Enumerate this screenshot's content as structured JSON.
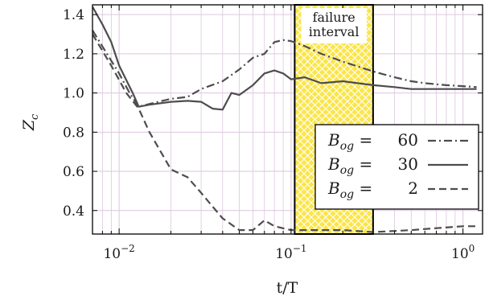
{
  "chart_data": {
    "type": "line",
    "xlabel": "t/T",
    "ylabel": "Z_c",
    "x_scale": "log",
    "xlim": [
      0.007,
      1.3
    ],
    "ylim": [
      0.28,
      1.45
    ],
    "x_ticks": [
      {
        "value": 0.01,
        "base": "10",
        "exp": "−2"
      },
      {
        "value": 0.1,
        "base": "10",
        "exp": "−1"
      },
      {
        "value": 1.0,
        "base": "10",
        "exp": "0"
      }
    ],
    "y_ticks": [
      "0.4",
      "0.6",
      "0.8",
      "1.0",
      "1.2",
      "1.4"
    ],
    "grid": true,
    "legend_position": "lower-right",
    "annotation": {
      "lines": [
        "failure",
        "interval"
      ],
      "x_range": [
        0.105,
        0.3
      ],
      "fill_color": "#f6dc1e"
    },
    "series": [
      {
        "name": "B_og = 60",
        "legend_label": "60",
        "style": "dashdot",
        "color": "#4d4d4d",
        "points": [
          [
            0.007,
            1.32
          ],
          [
            0.0085,
            1.2
          ],
          [
            0.01,
            1.1
          ],
          [
            0.0115,
            1.0
          ],
          [
            0.013,
            0.93
          ],
          [
            0.016,
            0.95
          ],
          [
            0.02,
            0.97
          ],
          [
            0.025,
            0.98
          ],
          [
            0.03,
            1.02
          ],
          [
            0.04,
            1.06
          ],
          [
            0.05,
            1.12
          ],
          [
            0.06,
            1.18
          ],
          [
            0.07,
            1.2
          ],
          [
            0.08,
            1.26
          ],
          [
            0.09,
            1.27
          ],
          [
            0.1,
            1.265
          ],
          [
            0.12,
            1.24
          ],
          [
            0.15,
            1.2
          ],
          [
            0.2,
            1.16
          ],
          [
            0.3,
            1.11
          ],
          [
            0.4,
            1.08
          ],
          [
            0.5,
            1.06
          ],
          [
            0.6,
            1.05
          ],
          [
            0.8,
            1.04
          ],
          [
            1.0,
            1.035
          ],
          [
            1.2,
            1.03
          ]
        ]
      },
      {
        "name": "B_og = 30",
        "legend_label": "30",
        "style": "solid",
        "color": "#4d4d4d",
        "points": [
          [
            0.007,
            1.44
          ],
          [
            0.008,
            1.35
          ],
          [
            0.009,
            1.26
          ],
          [
            0.01,
            1.14
          ],
          [
            0.012,
            1.0
          ],
          [
            0.013,
            0.93
          ],
          [
            0.015,
            0.94
          ],
          [
            0.02,
            0.955
          ],
          [
            0.025,
            0.96
          ],
          [
            0.03,
            0.955
          ],
          [
            0.035,
            0.92
          ],
          [
            0.04,
            0.915
          ],
          [
            0.045,
            1.0
          ],
          [
            0.05,
            0.99
          ],
          [
            0.06,
            1.04
          ],
          [
            0.07,
            1.1
          ],
          [
            0.08,
            1.115
          ],
          [
            0.09,
            1.1
          ],
          [
            0.1,
            1.07
          ],
          [
            0.12,
            1.08
          ],
          [
            0.15,
            1.05
          ],
          [
            0.2,
            1.06
          ],
          [
            0.3,
            1.04
          ],
          [
            0.4,
            1.03
          ],
          [
            0.5,
            1.02
          ],
          [
            0.7,
            1.02
          ],
          [
            1.0,
            1.02
          ],
          [
            1.2,
            1.02
          ]
        ]
      },
      {
        "name": "B_og = 2",
        "legend_label": "2",
        "style": "dashed",
        "color": "#4d4d4d",
        "points": [
          [
            0.007,
            1.3
          ],
          [
            0.009,
            1.14
          ],
          [
            0.011,
            1.0
          ],
          [
            0.013,
            0.92
          ],
          [
            0.015,
            0.8
          ],
          [
            0.018,
            0.68
          ],
          [
            0.02,
            0.61
          ],
          [
            0.025,
            0.57
          ],
          [
            0.03,
            0.49
          ],
          [
            0.035,
            0.42
          ],
          [
            0.04,
            0.36
          ],
          [
            0.05,
            0.3
          ],
          [
            0.06,
            0.3
          ],
          [
            0.07,
            0.35
          ],
          [
            0.08,
            0.32
          ],
          [
            0.1,
            0.3
          ],
          [
            0.15,
            0.3
          ],
          [
            0.2,
            0.3
          ],
          [
            0.3,
            0.29
          ],
          [
            0.5,
            0.3
          ],
          [
            0.7,
            0.31
          ],
          [
            1.0,
            0.32
          ],
          [
            1.2,
            0.32
          ]
        ]
      }
    ]
  }
}
